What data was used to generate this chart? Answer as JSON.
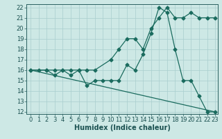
{
  "xlabel": "Humidex (Indice chaleur)",
  "ylabel": "",
  "background_color": "#cde8e5",
  "grid_color": "#a8cece",
  "line_color": "#1a6b5e",
  "xlim": [
    -0.5,
    23.3
  ],
  "ylim": [
    11.8,
    22.3
  ],
  "xticks": [
    0,
    1,
    2,
    3,
    4,
    5,
    6,
    7,
    8,
    9,
    10,
    11,
    12,
    13,
    14,
    15,
    16,
    17,
    18,
    19,
    20,
    21,
    22,
    23
  ],
  "yticks": [
    12,
    13,
    14,
    15,
    16,
    17,
    18,
    19,
    20,
    21,
    22
  ],
  "line1_x": [
    0,
    1,
    2,
    3,
    4,
    5,
    6,
    7,
    8,
    9,
    10,
    11,
    12,
    13,
    14,
    15,
    16,
    17,
    18,
    19,
    20,
    21,
    22,
    23
  ],
  "line1_y": [
    16,
    16,
    16,
    15.5,
    16,
    15.5,
    16,
    14.5,
    15,
    15,
    15,
    15,
    16.5,
    16,
    17.5,
    19.5,
    22,
    21.5,
    18,
    15,
    15,
    13.5,
    12,
    12
  ],
  "line2_x": [
    0,
    2,
    3,
    4,
    5,
    6,
    7,
    8,
    10,
    11,
    12,
    13,
    14,
    15,
    16,
    17,
    18,
    19,
    20,
    21,
    22,
    23
  ],
  "line2_y": [
    16,
    16,
    16,
    16,
    16,
    16,
    16,
    16,
    17,
    18,
    19,
    19,
    18,
    20,
    21,
    22,
    21,
    21,
    21.5,
    21,
    21,
    21
  ],
  "line3_x": [
    0,
    23
  ],
  "line3_y": [
    16,
    12
  ],
  "marker_size": 2.5,
  "linewidth": 0.9,
  "font_size_ticks": 6,
  "font_size_xlabel": 7
}
